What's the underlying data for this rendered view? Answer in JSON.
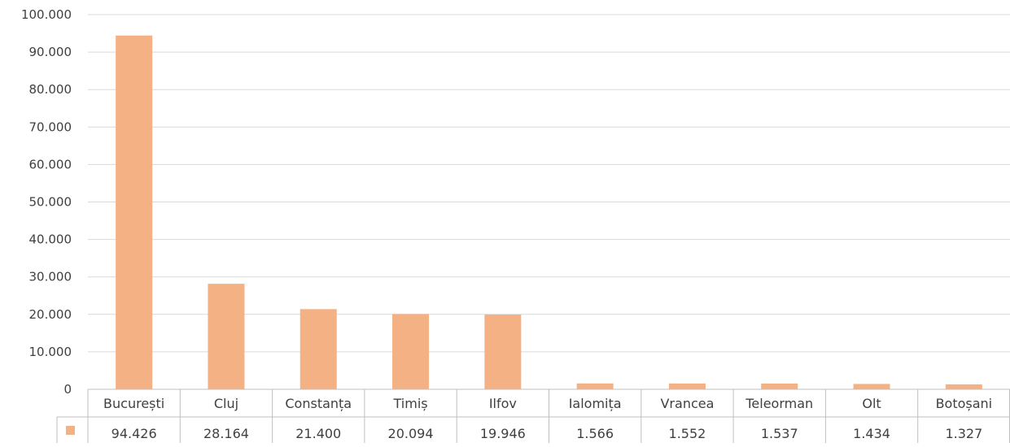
{
  "colors": {
    "bar": "#F4B183",
    "grid": "#D9D9D9",
    "table_border": "#BFBFBF",
    "text": "#404040"
  },
  "chart_data": {
    "type": "bar",
    "categories": [
      "București",
      "Cluj",
      "Constanța",
      "Timiș",
      "Ilfov",
      "Ialomița",
      "Vrancea",
      "Teleorman",
      "Olt",
      "Botoșani"
    ],
    "series": [
      {
        "values": [
          94426,
          28164,
          21400,
          20094,
          19946,
          1566,
          1552,
          1537,
          1434,
          1327
        ],
        "value_labels": [
          "94.426",
          "28.164",
          "21.400",
          "20.094",
          "19.946",
          "1.566",
          "1.552",
          "1.537",
          "1.434",
          "1.327"
        ]
      }
    ],
    "ylim": [
      0,
      100000
    ],
    "yticks": [
      0,
      10000,
      20000,
      30000,
      40000,
      50000,
      60000,
      70000,
      80000,
      90000,
      100000
    ],
    "ytick_labels": [
      "0",
      "10.000",
      "20.000",
      "30.000",
      "40.000",
      "50.000",
      "60.000",
      "70.000",
      "80.000",
      "90.000",
      "100.000"
    ],
    "grid": true,
    "data_table": true,
    "legend_key": "bar-swatch"
  }
}
